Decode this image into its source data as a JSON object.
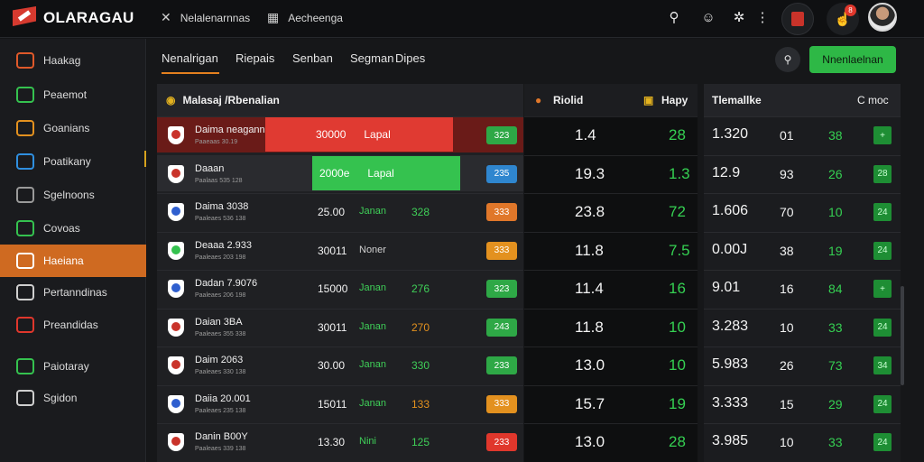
{
  "app": {
    "brand": "OLARAGAU"
  },
  "topbar": {
    "nav": [
      {
        "label": "Nelalenarnnas",
        "icon": "tools-icon"
      },
      {
        "label": "Aecheenga",
        "icon": "grid-icon"
      }
    ],
    "notification_count": "8",
    "icons": [
      "search-icon",
      "chat-icon",
      "settings-icon",
      "more-icon",
      "betslip-icon",
      "bell-icon",
      "avatar"
    ]
  },
  "sidebar": {
    "items": [
      {
        "label": "Haakag",
        "icon": "shield-icon",
        "color": "#e0592a",
        "active": false
      },
      {
        "label": "Peaemot",
        "icon": "monitor-icon",
        "color": "#35c24f",
        "active": false
      },
      {
        "label": "Goanians",
        "icon": "chart-icon",
        "color": "#e3911f",
        "active": false
      },
      {
        "label": "Poatikany",
        "icon": "box-icon",
        "color": "#2f8fe0",
        "active": false
      },
      {
        "label": "Sgelnoons",
        "icon": "x-icon",
        "color": "#9a9a9a",
        "active": false
      },
      {
        "label": "Covoas",
        "icon": "target-icon",
        "color": "#35c24f",
        "active": false
      },
      {
        "label": "Haeiana",
        "icon": "ball-icon",
        "color": "#ffffff",
        "active": true
      },
      {
        "label": "Pertanndinas",
        "icon": "globe-icon",
        "color": "#cfcfcf",
        "active": false
      },
      {
        "label": "Preandidas",
        "icon": "c-icon",
        "color": "#e0372c",
        "active": false
      },
      {
        "label": "Paiotaray",
        "icon": "calendar-icon",
        "color": "#35c24f",
        "active": false
      },
      {
        "label": "Sgidon",
        "icon": "e-icon",
        "color": "#cfcfcf",
        "active": false
      }
    ]
  },
  "main": {
    "tabs": [
      "Nenalrigan",
      "Riepais",
      "Senban",
      "Segman",
      "Dipes"
    ],
    "primary_button": "Nnenlaelnan",
    "left_panel": {
      "title": "Malasaj /Rbenalian"
    },
    "mid_panel": {
      "title_a": "Riolid",
      "title_b": "Hapy"
    },
    "right_panel": {
      "title": "Tlemallke",
      "title_b": "C moc"
    },
    "rows": [
      {
        "team": "Daima neaganna",
        "sub": "Paaeaas  30.19",
        "a": "30000",
        "b": "Lapal",
        "c": "",
        "pill": "323",
        "pill_color": "#2ea846",
        "highlight": "#e03a32",
        "mid1": "1.4",
        "mid2": "28",
        "r1": "1.320",
        "r2": "01",
        "r3": "38",
        "rchip": "+"
      },
      {
        "team": "Daaan",
        "sub": "Paalaas  535 128",
        "a": "2000e",
        "b": "Lapal",
        "c": "",
        "pill": "235",
        "pill_color": "#2f86cf",
        "highlight": "#35c24f",
        "mid1": "19.3",
        "mid2": "1.3",
        "r1": "12.9",
        "r2": "93",
        "r3": "26",
        "rchip": "28"
      },
      {
        "team": "Daima  3038",
        "sub": "Paaleaes  536 138",
        "a": "25.00",
        "b": "Janan",
        "c": "328",
        "pill": "333",
        "pill_color": "#e0772a",
        "highlight": "",
        "mid1": "23.8",
        "mid2": "72",
        "r1": "1.606",
        "r2": "70",
        "r3": "10",
        "rchip": "24"
      },
      {
        "team": "Deaaa  2.933",
        "sub": "Paaleaes  203 198",
        "a": "30011",
        "b": "Noner",
        "c": "",
        "pill": "333",
        "pill_color": "#e3911f",
        "highlight": "",
        "mid1": "11.8",
        "mid2": "7.5",
        "r1": "0.00J",
        "r2": "38",
        "r3": "19",
        "rchip": "24"
      },
      {
        "team": "Dadan  7.9076",
        "sub": "Paaleaes  206 198",
        "a": "15000",
        "b": "Janan",
        "c": "276",
        "pill": "323",
        "pill_color": "#2ea846",
        "highlight": "",
        "mid1": "11.4",
        "mid2": "16",
        "r1": "9.01",
        "r2": "16",
        "r3": "84",
        "rchip": "+"
      },
      {
        "team": "Daian  3BA",
        "sub": "Paaleaes  355 338",
        "a": "30011",
        "b": "Janan",
        "c": "270",
        "pill": "243",
        "pill_color": "#2ea846",
        "highlight": "",
        "mid1": "11.8",
        "mid2": "10",
        "r1": "3.283",
        "r2": "10",
        "r3": "33",
        "rchip": "24"
      },
      {
        "team": "Daim  2063",
        "sub": "Paaleaes  330 138",
        "a": "30.00",
        "b": "Janan",
        "c": "330",
        "pill": "233",
        "pill_color": "#2ea846",
        "highlight": "",
        "mid1": "13.0",
        "mid2": "10",
        "r1": "5.983",
        "r2": "26",
        "r3": "73",
        "rchip": "34"
      },
      {
        "team": "Daiia  20.001",
        "sub": "Paaleaes  235 138",
        "a": "15011",
        "b": "Janan",
        "c": "133",
        "pill": "333",
        "pill_color": "#e3911f",
        "highlight": "",
        "mid1": "15.7",
        "mid2": "19",
        "r1": "3.333",
        "r2": "15",
        "r3": "29",
        "rchip": "24"
      },
      {
        "team": "Danin  B00Y",
        "sub": "Paaleaes  339 138",
        "a": "13.30",
        "b": "Nini",
        "c": "125",
        "pill": "233",
        "pill_color": "#e0372c",
        "highlight": "",
        "mid1": "13.0",
        "mid2": "28",
        "r1": "3.985",
        "r2": "10",
        "r3": "33",
        "rchip": "24"
      }
    ]
  }
}
